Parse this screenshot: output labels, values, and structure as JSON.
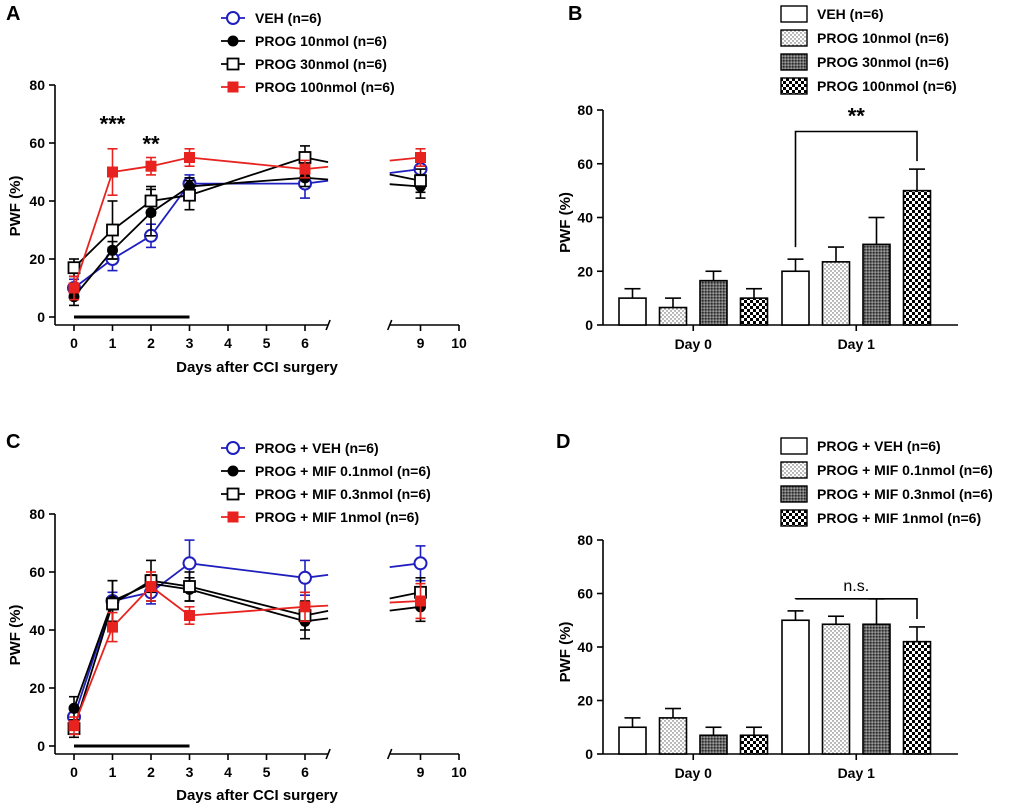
{
  "colors": {
    "blue": "#1f1fbf",
    "black": "#000000",
    "red": "#e8231f"
  },
  "chart_data": [
    {
      "panel": "A",
      "type": "line",
      "xlabel": "Days after CCI surgery",
      "ylabel": "PWF (%)",
      "ylim": [
        0,
        80
      ],
      "yticks": [
        0,
        20,
        40,
        60,
        80
      ],
      "xticks": [
        0,
        1,
        2,
        3,
        4,
        5,
        6,
        9,
        10
      ],
      "xtick_labels": [
        "0",
        "1",
        "2",
        "3",
        "4",
        "5",
        "6",
        "9",
        "10"
      ],
      "axis_break": [
        6.6,
        8.2
      ],
      "treatment_bar": [
        0,
        3
      ],
      "series": [
        {
          "name": "VEH (n=6)",
          "color": "blue",
          "marker": "open-circle",
          "x": [
            0,
            1,
            2,
            3,
            6,
            9
          ],
          "y": [
            10,
            20,
            28,
            46,
            46,
            51
          ],
          "err": [
            3,
            4,
            4,
            3,
            5,
            4
          ]
        },
        {
          "name": "PROG 10nmol (n=6)",
          "color": "black",
          "marker": "filled-circle",
          "x": [
            0,
            1,
            2,
            3,
            6,
            9
          ],
          "y": [
            7,
            23,
            36,
            45,
            48,
            45
          ],
          "err": [
            3,
            3,
            8,
            3,
            3,
            4
          ]
        },
        {
          "name": "PROG 30nmol (n=6)",
          "color": "black",
          "marker": "open-square",
          "x": [
            0,
            1,
            2,
            3,
            6,
            9
          ],
          "y": [
            17,
            30,
            40,
            42,
            55,
            47
          ],
          "err": [
            3,
            10,
            5,
            5,
            4,
            4
          ]
        },
        {
          "name": "PROG 100nmol (n=6)",
          "color": "red",
          "marker": "filled-square",
          "x": [
            0,
            1,
            2,
            3,
            6,
            9
          ],
          "y": [
            10,
            50,
            52,
            55,
            51,
            55
          ],
          "err": [
            4,
            8,
            3,
            3,
            3,
            3
          ]
        }
      ],
      "annotations": [
        {
          "text": "***",
          "x": 1,
          "y": 64
        },
        {
          "text": "**",
          "x": 2,
          "y": 57
        }
      ]
    },
    {
      "panel": "B",
      "type": "bar",
      "ylabel": "PWF (%)",
      "ylim": [
        0,
        80
      ],
      "yticks": [
        0,
        20,
        40,
        60,
        80
      ],
      "categories": [
        "Day 0",
        "Day 1"
      ],
      "series": [
        {
          "name": "VEH (n=6)",
          "fill": "white",
          "values": [
            10,
            20
          ],
          "err": [
            3.5,
            4.5
          ]
        },
        {
          "name": "PROG 10nmol (n=6)",
          "fill": "dots",
          "values": [
            6.5,
            23.5
          ],
          "err": [
            3.5,
            5.5
          ]
        },
        {
          "name": "PROG 30nmol (n=6)",
          "fill": "dense",
          "values": [
            16.5,
            30
          ],
          "err": [
            3.5,
            10
          ]
        },
        {
          "name": "PROG 100nmol (n=6)",
          "fill": "checker",
          "values": [
            10,
            50
          ],
          "err": [
            3.5,
            8
          ]
        }
      ],
      "bracket": {
        "label": "**",
        "from": [
          1,
          0
        ],
        "to": [
          1,
          3
        ],
        "y": 72
      }
    },
    {
      "panel": "C",
      "type": "line",
      "xlabel": "Days after CCI surgery",
      "ylabel": "PWF (%)",
      "ylim": [
        0,
        80
      ],
      "yticks": [
        0,
        20,
        40,
        60,
        80
      ],
      "xticks": [
        0,
        1,
        2,
        3,
        4,
        5,
        6,
        9,
        10
      ],
      "xtick_labels": [
        "0",
        "1",
        "2",
        "3",
        "4",
        "5",
        "6",
        "9",
        "10"
      ],
      "axis_break": [
        6.6,
        8.2
      ],
      "treatment_bar": [
        0,
        3
      ],
      "series": [
        {
          "name": "PROG + VEH (n=6)",
          "color": "blue",
          "marker": "open-circle",
          "x": [
            0,
            1,
            2,
            3,
            6,
            9
          ],
          "y": [
            10,
            50,
            53,
            63,
            58,
            63
          ],
          "err": [
            3,
            3,
            4,
            8,
            6,
            6
          ]
        },
        {
          "name": "PROG + MIF 0.1nmol (n=6)",
          "color": "black",
          "marker": "filled-circle",
          "x": [
            0,
            1,
            2,
            3,
            6,
            9
          ],
          "y": [
            13,
            50,
            56,
            54,
            43,
            48
          ],
          "err": [
            4,
            7,
            3,
            4,
            6,
            5
          ]
        },
        {
          "name": "PROG + MIF 0.3nmol (n=6)",
          "color": "black",
          "marker": "open-square",
          "x": [
            0,
            1,
            2,
            3,
            6,
            9
          ],
          "y": [
            6,
            49,
            57,
            55,
            45,
            53
          ],
          "err": [
            3,
            8,
            7,
            5,
            5,
            5
          ]
        },
        {
          "name": "PROG + MIF 1nmol (n=6)",
          "color": "red",
          "marker": "filled-square",
          "x": [
            0,
            1,
            2,
            3,
            6,
            9
          ],
          "y": [
            7,
            41,
            55,
            45,
            48,
            50
          ],
          "err": [
            3,
            5,
            5,
            3,
            5,
            6
          ]
        }
      ]
    },
    {
      "panel": "D",
      "type": "bar",
      "ylabel": "PWF (%)",
      "ylim": [
        0,
        80
      ],
      "yticks": [
        0,
        20,
        40,
        60,
        80
      ],
      "categories": [
        "Day 0",
        "Day 1"
      ],
      "series": [
        {
          "name": "PROG + VEH (n=6)",
          "fill": "white",
          "values": [
            10,
            50
          ],
          "err": [
            3.5,
            3.5
          ]
        },
        {
          "name": "PROG + MIF 0.1nmol (n=6)",
          "fill": "dots",
          "values": [
            13.5,
            48.5
          ],
          "err": [
            3.5,
            3
          ]
        },
        {
          "name": "PROG + MIF 0.3nmol (n=6)",
          "fill": "dense",
          "values": [
            7,
            48.5
          ],
          "err": [
            3,
            9.5
          ]
        },
        {
          "name": "PROG + MIF 1nmol (n=6)",
          "fill": "checker",
          "values": [
            7,
            42
          ],
          "err": [
            3,
            5.5
          ]
        }
      ],
      "bracket": {
        "label": "n.s.",
        "from": [
          1,
          0
        ],
        "to": [
          1,
          3
        ],
        "y": 58
      }
    }
  ]
}
